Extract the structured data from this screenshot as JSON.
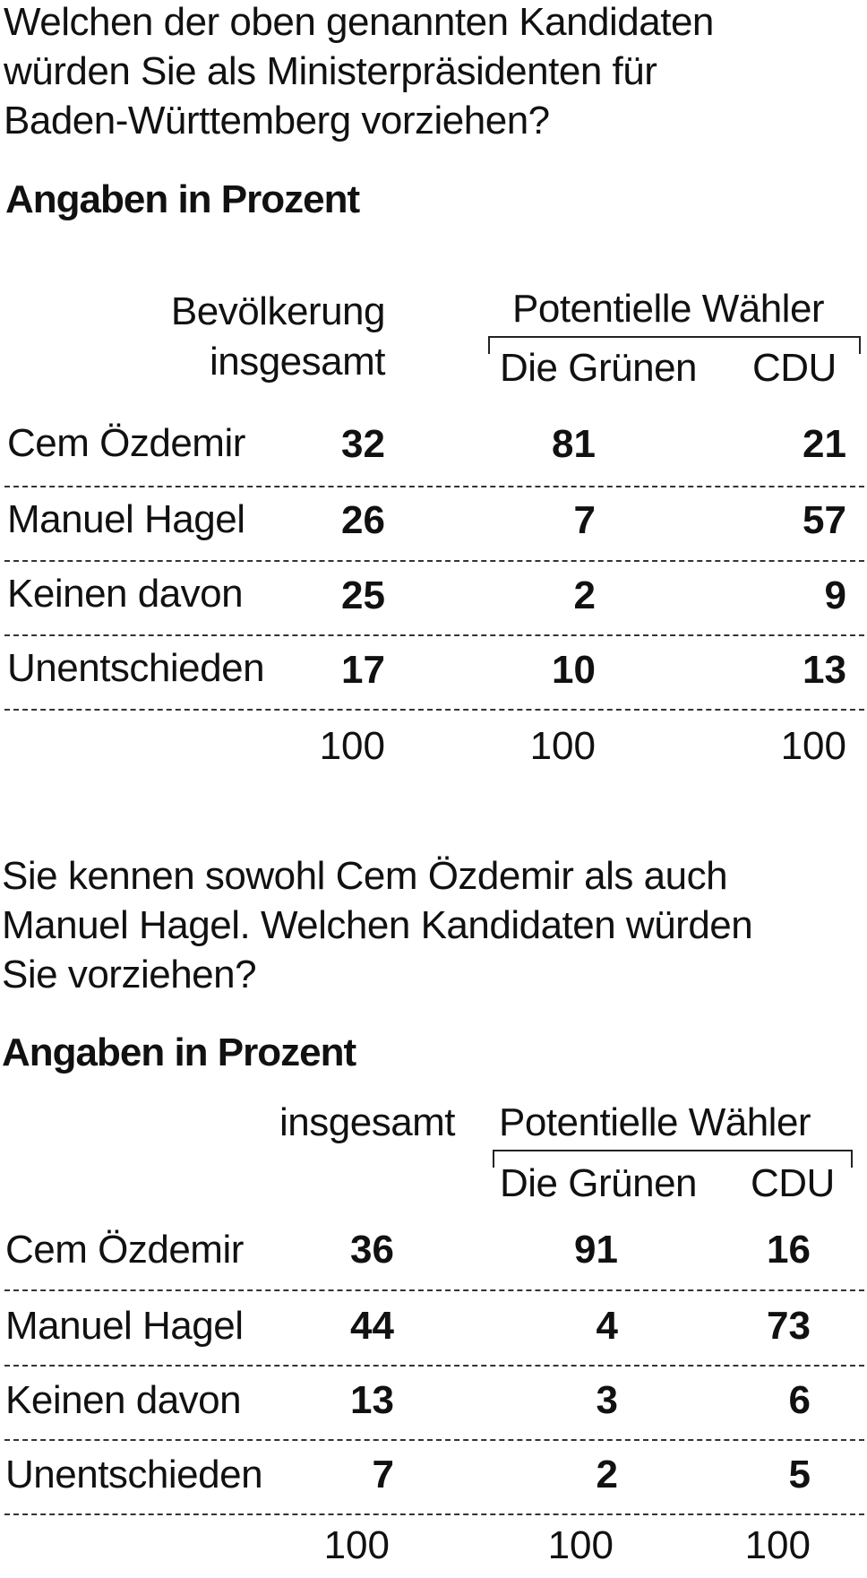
{
  "section1": {
    "question": [
      "Welchen der oben genannten Kandidaten",
      "würden Sie als Ministerpräsidenten für",
      "Baden-Württemberg vorziehen?"
    ],
    "subtitle": "Angaben in Prozent",
    "col_total_header": [
      "Bevölkerung",
      "insgesamt"
    ],
    "group_header": "Potentielle Wähler",
    "col_gruene": "Die Grünen",
    "col_cdu": "CDU",
    "rows": [
      {
        "label": "Cem Özdemir",
        "total": "32",
        "gruene": "81",
        "cdu": "21"
      },
      {
        "label": "Manuel Hagel",
        "total": "26",
        "gruene": "7",
        "cdu": "57"
      },
      {
        "label": "Keinen davon",
        "total": "25",
        "gruene": "2",
        "cdu": "9"
      },
      {
        "label": "Unentschieden",
        "total": "17",
        "gruene": "10",
        "cdu": "13"
      }
    ],
    "sums": {
      "total": "100",
      "gruene": "100",
      "cdu": "100"
    }
  },
  "section2": {
    "question": [
      "Sie kennen sowohl Cem Özdemir als auch",
      "Manuel Hagel. Welchen Kandidaten würden",
      "Sie vorziehen?"
    ],
    "subtitle": "Angaben in Prozent",
    "col_total_header": "insgesamt",
    "group_header": "Potentielle Wähler",
    "col_gruene": "Die Grünen",
    "col_cdu": "CDU",
    "rows": [
      {
        "label": "Cem Özdemir",
        "total": "36",
        "gruene": "91",
        "cdu": "16"
      },
      {
        "label": "Manuel Hagel",
        "total": "44",
        "gruene": "4",
        "cdu": "73"
      },
      {
        "label": "Keinen davon",
        "total": "13",
        "gruene": "3",
        "cdu": "6"
      },
      {
        "label": "Unentschieden",
        "total": "7",
        "gruene": "2",
        "cdu": "5"
      }
    ],
    "sums": {
      "total": "100",
      "gruene": "100",
      "cdu": "100"
    }
  }
}
